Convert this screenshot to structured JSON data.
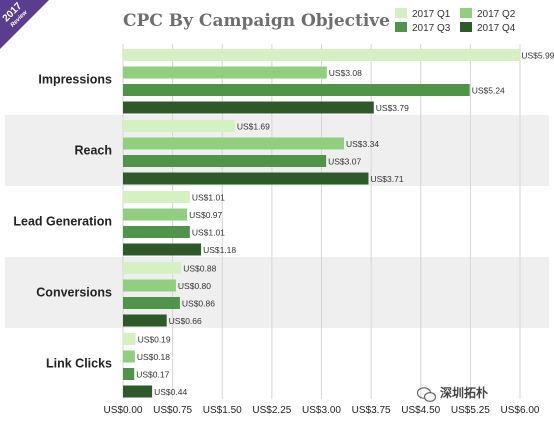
{
  "ribbon": {
    "year": "2017",
    "label": "Review"
  },
  "chart_data": {
    "type": "bar",
    "orientation": "horizontal",
    "title": "CPC By Campaign Objective",
    "categories": [
      "Impressions",
      "Reach",
      "Lead Generation",
      "Conversions",
      "Link Clicks"
    ],
    "series": [
      {
        "name": "2017 Q1",
        "color": "#d5f1c2",
        "values": [
          5.99,
          1.69,
          1.01,
          0.88,
          0.19
        ],
        "labels": [
          "US$5.99",
          "US$1.69",
          "US$1.01",
          "US$0.88",
          "US$0.19"
        ]
      },
      {
        "name": "2017 Q2",
        "color": "#8fcf7e",
        "values": [
          3.08,
          3.34,
          0.97,
          0.8,
          0.18
        ],
        "labels": [
          "US$3.08",
          "US$3.34",
          "US$0.97",
          "US$0.80",
          "US$0.18"
        ]
      },
      {
        "name": "2017 Q3",
        "color": "#4f9448",
        "values": [
          5.24,
          3.07,
          1.01,
          0.86,
          0.17
        ],
        "labels": [
          "US$5.24",
          "US$3.07",
          "US$1.01",
          "US$0.86",
          "US$0.17"
        ]
      },
      {
        "name": "2017 Q4",
        "color": "#2d5a28",
        "values": [
          3.79,
          3.71,
          1.18,
          0.66,
          0.44
        ],
        "labels": [
          "US$3.79",
          "US$3.71",
          "US$1.18",
          "US$0.66",
          "US$0.44"
        ]
      }
    ],
    "xlim": [
      0,
      6
    ],
    "xticks": [
      "US$0.00",
      "US$0.75",
      "US$1.50",
      "US$2.25",
      "US$3.00",
      "US$3.75",
      "US$4.50",
      "US$5.25",
      "US$6.00"
    ],
    "legend_position": "top-right",
    "grid": "vertical"
  },
  "watermark": {
    "text": "深圳拓朴"
  },
  "colors": {
    "ribbon": "#5a3d8f",
    "band": "#efefef",
    "grid": "#d6d6d6"
  }
}
